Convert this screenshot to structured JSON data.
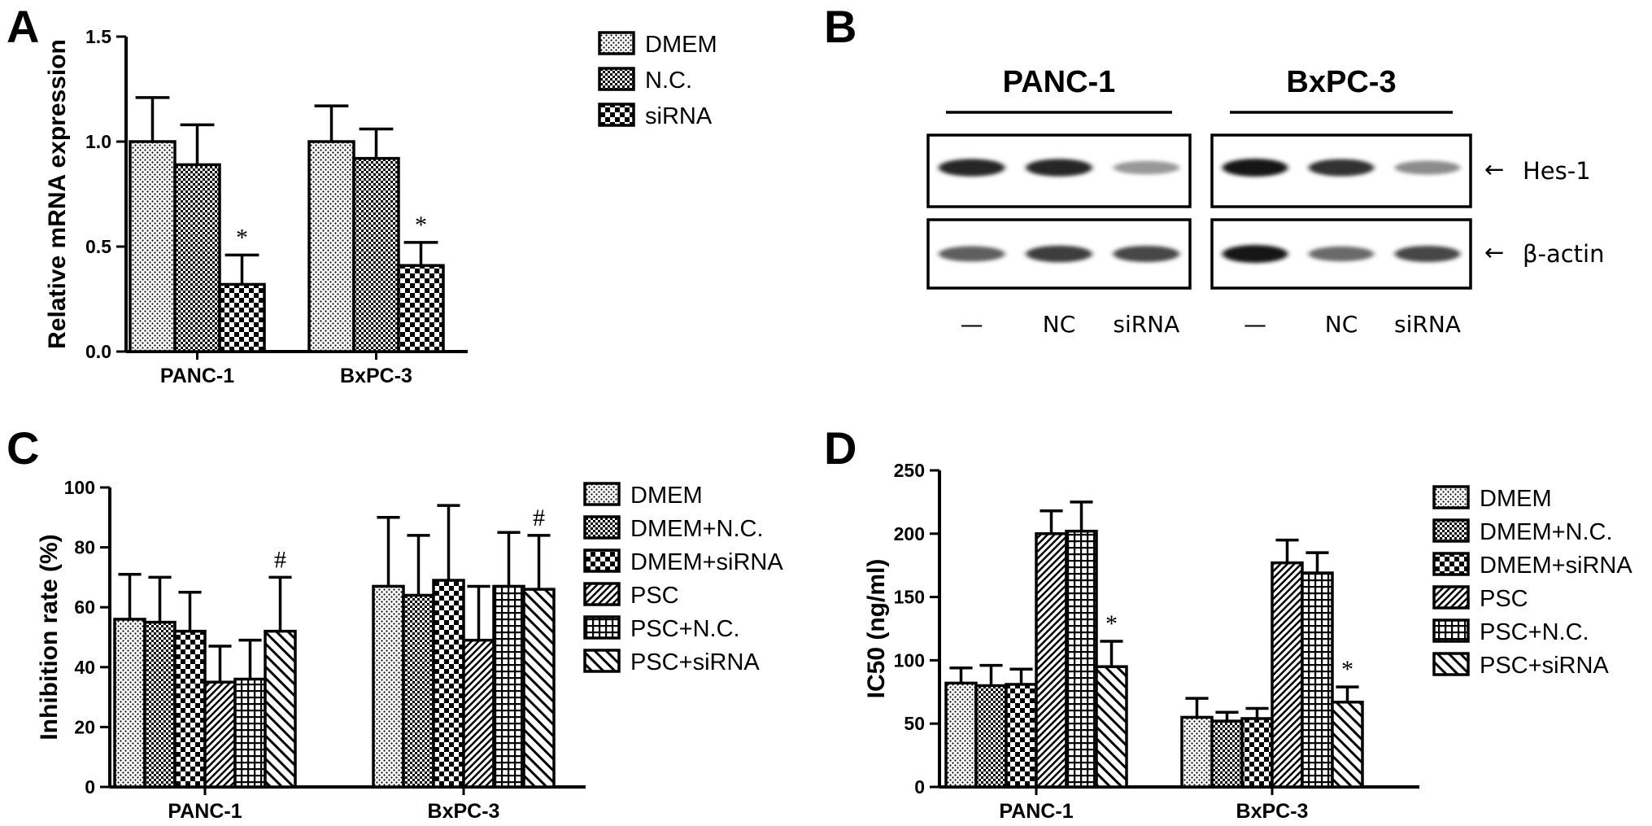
{
  "colors": {
    "ink": "#000000",
    "background": "#ffffff",
    "band": "#1a1a1a"
  },
  "panels": {
    "A": {
      "letter": "A"
    },
    "B": {
      "letter": "B"
    },
    "C": {
      "letter": "C"
    },
    "D": {
      "letter": "D"
    }
  },
  "chart_data": [
    {
      "panel": "A",
      "type": "bar",
      "title": "",
      "xlabel": "",
      "ylabel": "Relative mRNA expression",
      "ylim": [
        0,
        1.5
      ],
      "yticks": [
        "0.0",
        "0.5",
        "1.0",
        "1.5"
      ],
      "categories": [
        "PANC-1",
        "BxPC-3"
      ],
      "legend_position": "top-right",
      "series": [
        {
          "name": "DMEM",
          "pattern": "dots",
          "values": [
            1.0,
            1.0
          ],
          "errors": [
            0.21,
            0.17
          ]
        },
        {
          "name": "N.C.",
          "pattern": "fine-check",
          "values": [
            0.89,
            0.92
          ],
          "errors": [
            0.19,
            0.14
          ]
        },
        {
          "name": "siRNA",
          "pattern": "checker",
          "values": [
            0.32,
            0.41
          ],
          "errors": [
            0.14,
            0.11
          ]
        }
      ],
      "annotations": [
        {
          "category": "PANC-1",
          "series": "siRNA",
          "text": "*"
        },
        {
          "category": "BxPC-3",
          "series": "siRNA",
          "text": "*"
        }
      ]
    },
    {
      "panel": "C",
      "type": "bar",
      "title": "",
      "xlabel": "",
      "ylabel": "Inhibition rate (%)",
      "ylim": [
        0,
        100
      ],
      "yticks": [
        "0",
        "20",
        "40",
        "60",
        "80",
        "100"
      ],
      "categories": [
        "PANC-1",
        "BxPC-3"
      ],
      "legend_position": "right",
      "series": [
        {
          "name": "DMEM",
          "pattern": "dots",
          "values": [
            56,
            67
          ],
          "errors": [
            15,
            23
          ]
        },
        {
          "name": "DMEM+N.C.",
          "pattern": "fine-check",
          "values": [
            55,
            64
          ],
          "errors": [
            15,
            20
          ]
        },
        {
          "name": "DMEM+siRNA",
          "pattern": "checker",
          "values": [
            52,
            69
          ],
          "errors": [
            13,
            25
          ]
        },
        {
          "name": "PSC",
          "pattern": "diag-dense",
          "values": [
            35,
            49
          ],
          "errors": [
            12,
            18
          ]
        },
        {
          "name": "PSC+N.C.",
          "pattern": "grid",
          "values": [
            36,
            67
          ],
          "errors": [
            13,
            18
          ]
        },
        {
          "name": "PSC+siRNA",
          "pattern": "diag",
          "values": [
            52,
            66
          ],
          "errors": [
            18,
            18
          ]
        }
      ],
      "annotations": [
        {
          "category": "PANC-1",
          "series": "PSC+siRNA",
          "text": "#"
        },
        {
          "category": "BxPC-3",
          "series": "PSC+siRNA",
          "text": "#"
        }
      ]
    },
    {
      "panel": "D",
      "type": "bar",
      "title": "",
      "xlabel": "",
      "ylabel": "IC50 (ng/ml)",
      "ylim": [
        0,
        250
      ],
      "yticks": [
        "0",
        "50",
        "100",
        "150",
        "200",
        "250"
      ],
      "categories": [
        "PANC-1",
        "BxPC-3"
      ],
      "legend_position": "right",
      "series": [
        {
          "name": "DMEM",
          "pattern": "dots",
          "values": [
            82,
            55
          ],
          "errors": [
            12,
            15
          ]
        },
        {
          "name": "DMEM+N.C.",
          "pattern": "fine-check",
          "values": [
            80,
            52
          ],
          "errors": [
            16,
            7
          ]
        },
        {
          "name": "DMEM+siRNA",
          "pattern": "checker",
          "values": [
            81,
            54
          ],
          "errors": [
            12,
            8
          ]
        },
        {
          "name": "PSC",
          "pattern": "diag-dense",
          "values": [
            200,
            177
          ],
          "errors": [
            18,
            18
          ]
        },
        {
          "name": "PSC+N.C.",
          "pattern": "grid",
          "values": [
            202,
            169
          ],
          "errors": [
            23,
            16
          ]
        },
        {
          "name": "PSC+siRNA",
          "pattern": "diag",
          "values": [
            95,
            67
          ],
          "errors": [
            20,
            12
          ]
        }
      ],
      "annotations": [
        {
          "category": "PANC-1",
          "series": "PSC+siRNA",
          "text": "*"
        },
        {
          "category": "BxPC-3",
          "series": "PSC+siRNA",
          "text": "*"
        }
      ]
    }
  ],
  "blot": {
    "groups": [
      {
        "title": "PANC-1",
        "lanes": [
          "—",
          "NC",
          "siRNA"
        ]
      },
      {
        "title": "BxPC-3",
        "lanes": [
          "—",
          "NC",
          "siRNA"
        ]
      }
    ],
    "rows": [
      {
        "label": "Hes-1",
        "arrow": "←",
        "intensity": [
          [
            0.95,
            0.95,
            0.45
          ],
          [
            1.0,
            0.9,
            0.5
          ]
        ]
      },
      {
        "label": "β-actin",
        "arrow": "←",
        "intensity": [
          [
            0.7,
            0.85,
            0.8
          ],
          [
            1.0,
            0.65,
            0.8
          ]
        ]
      }
    ]
  }
}
